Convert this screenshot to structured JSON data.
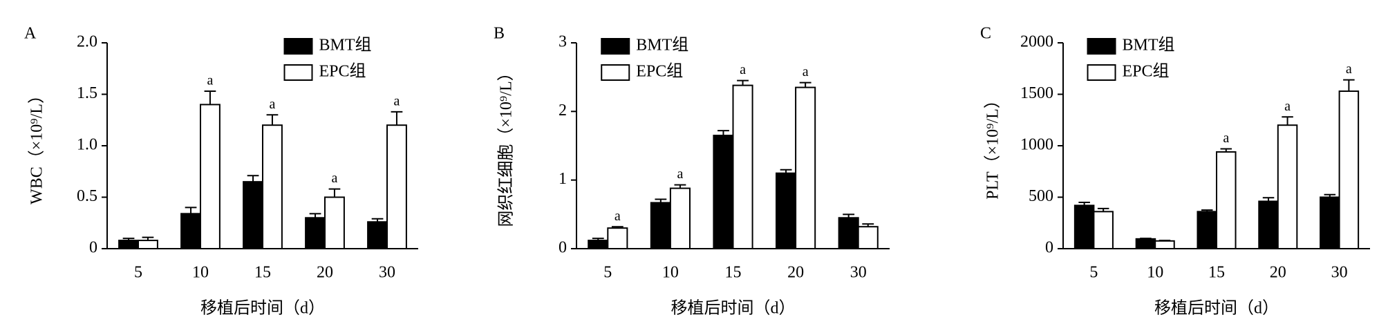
{
  "chart_data": [
    {
      "type": "bar",
      "label": "A",
      "ylabel": "WBC（×10⁹/L）",
      "xlabel": "移植后时间（d）",
      "categories": [
        "5",
        "10",
        "15",
        "20",
        "30"
      ],
      "series": [
        {
          "name": "BMT组",
          "color": "#000000",
          "values": [
            0.08,
            0.34,
            0.65,
            0.3,
            0.26
          ],
          "errors": [
            0.02,
            0.06,
            0.06,
            0.04,
            0.03
          ],
          "significance": [
            null,
            null,
            null,
            null,
            null
          ]
        },
        {
          "name": "EPC组",
          "color": "#ffffff",
          "values": [
            0.08,
            1.4,
            1.2,
            0.5,
            1.2
          ],
          "errors": [
            0.03,
            0.13,
            0.1,
            0.08,
            0.13
          ],
          "significance": [
            null,
            "a",
            "a",
            "a",
            "a"
          ]
        }
      ],
      "ylim": [
        0,
        2
      ],
      "yticks": [
        0,
        0.5,
        {
          "value": 1,
          "label": "1.0"
        },
        1.5,
        {
          "value": 2,
          "label": "2.0"
        }
      ],
      "legend": "upper right"
    },
    {
      "type": "bar",
      "label": "B",
      "ylabel": "网织红细胞（×10⁹/L）",
      "xlabel": "移植后时间（d）",
      "categories": [
        "5",
        "10",
        "15",
        "20",
        "30"
      ],
      "series": [
        {
          "name": "BMT组",
          "color": "#000000",
          "values": [
            0.12,
            0.67,
            1.65,
            1.1,
            0.45
          ],
          "errors": [
            0.03,
            0.05,
            0.07,
            0.05,
            0.05
          ],
          "significance": [
            null,
            null,
            null,
            null,
            null
          ]
        },
        {
          "name": "EPC组",
          "color": "#ffffff",
          "values": [
            0.3,
            0.88,
            2.38,
            2.35,
            0.32
          ],
          "errors": [
            0.02,
            0.05,
            0.07,
            0.07,
            0.04
          ],
          "significance": [
            "a",
            "a",
            "a",
            "a",
            null
          ]
        }
      ],
      "ylim": [
        0,
        3
      ],
      "yticks": [
        0,
        1,
        2,
        3
      ],
      "legend": "upper left"
    },
    {
      "type": "bar",
      "label": "C",
      "ylabel": "PLT（×10⁹/L）",
      "xlabel": "移植后时间（d）",
      "categories": [
        "5",
        "10",
        "15",
        "20",
        "30"
      ],
      "series": [
        {
          "name": "BMT组",
          "color": "#000000",
          "values": [
            420,
            95,
            360,
            460,
            500
          ],
          "errors": [
            30,
            5,
            15,
            35,
            25
          ],
          "significance": [
            null,
            null,
            null,
            null,
            null
          ]
        },
        {
          "name": "EPC组",
          "color": "#ffffff",
          "values": [
            360,
            75,
            940,
            1200,
            1530
          ],
          "errors": [
            30,
            5,
            30,
            80,
            110
          ],
          "significance": [
            null,
            null,
            "a",
            "a",
            "a"
          ]
        }
      ],
      "ylim": [
        0,
        2000
      ],
      "yticks": [
        0,
        500,
        1000,
        1500,
        2000
      ],
      "legend": "upper left"
    }
  ]
}
